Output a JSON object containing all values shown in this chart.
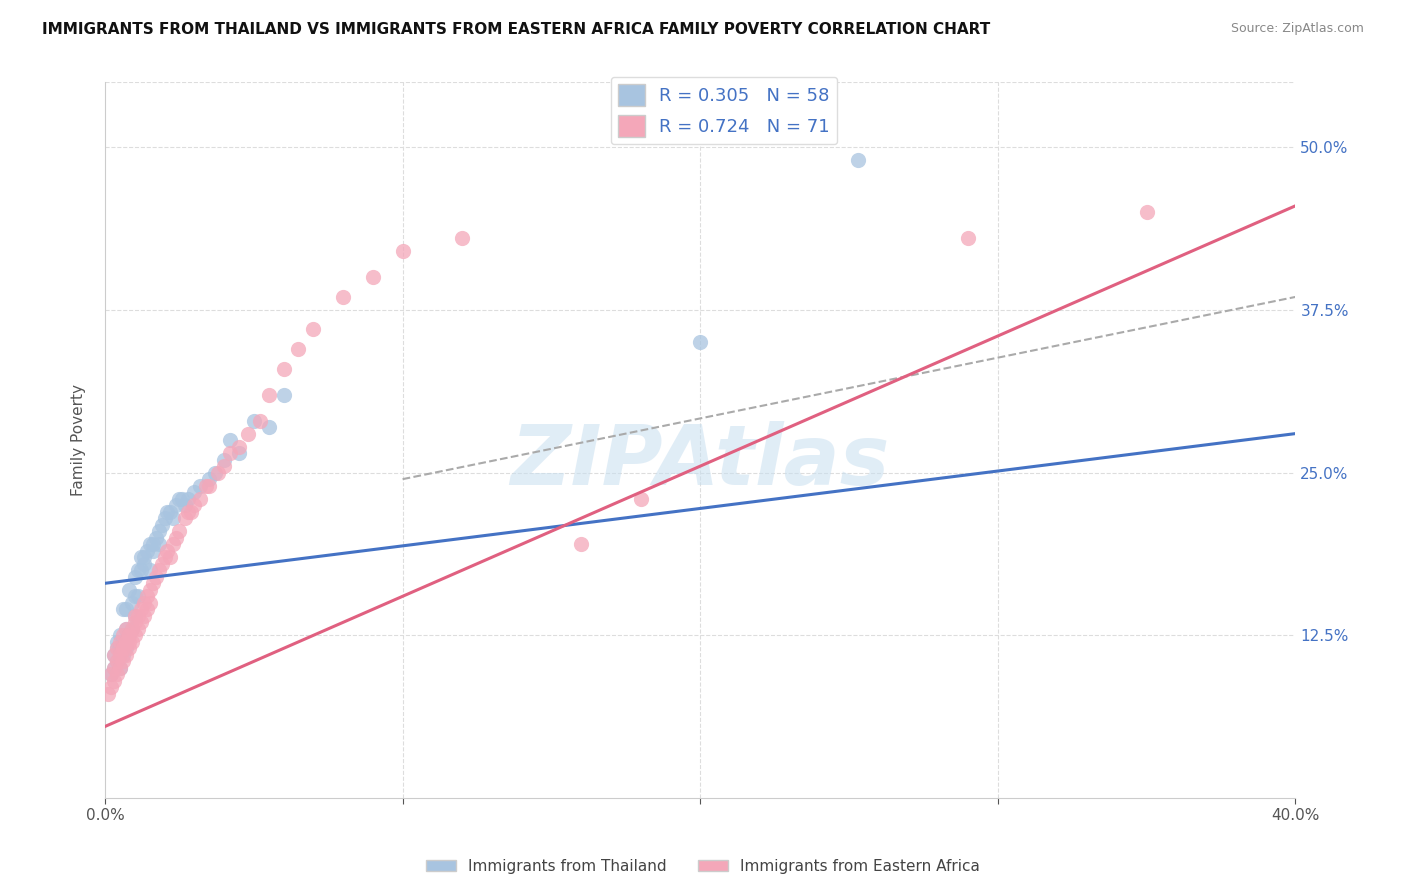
{
  "title": "IMMIGRANTS FROM THAILAND VS IMMIGRANTS FROM EASTERN AFRICA FAMILY POVERTY CORRELATION CHART",
  "source": "Source: ZipAtlas.com",
  "ylabel": "Family Poverty",
  "xlim": [
    0.0,
    0.4
  ],
  "ylim": [
    0.0,
    0.55
  ],
  "R_thailand": 0.305,
  "N_thailand": 58,
  "R_eafrica": 0.724,
  "N_eafrica": 71,
  "color_thailand": "#a8c4e0",
  "color_eafrica": "#f4a7b9",
  "line_color_thailand": "#4472c4",
  "line_color_eafrica": "#e06080",
  "line_color_dashed": "#aaaaaa",
  "legend_label_thailand": "Immigrants from Thailand",
  "legend_label_eafrica": "Immigrants from Eastern Africa",
  "watermark": "ZIPAtlas",
  "thailand_x": [
    0.002,
    0.003,
    0.003,
    0.004,
    0.004,
    0.004,
    0.005,
    0.005,
    0.005,
    0.006,
    0.006,
    0.006,
    0.007,
    0.007,
    0.007,
    0.008,
    0.008,
    0.009,
    0.009,
    0.01,
    0.01,
    0.01,
    0.011,
    0.011,
    0.012,
    0.012,
    0.013,
    0.013,
    0.014,
    0.015,
    0.015,
    0.016,
    0.016,
    0.017,
    0.018,
    0.018,
    0.019,
    0.02,
    0.021,
    0.022,
    0.023,
    0.024,
    0.025,
    0.026,
    0.027,
    0.028,
    0.03,
    0.032,
    0.035,
    0.037,
    0.04,
    0.042,
    0.045,
    0.05,
    0.055,
    0.06,
    0.2,
    0.253
  ],
  "thailand_y": [
    0.095,
    0.1,
    0.11,
    0.105,
    0.115,
    0.12,
    0.1,
    0.115,
    0.125,
    0.11,
    0.12,
    0.145,
    0.115,
    0.13,
    0.145,
    0.125,
    0.16,
    0.13,
    0.15,
    0.14,
    0.155,
    0.17,
    0.155,
    0.175,
    0.185,
    0.175,
    0.18,
    0.185,
    0.19,
    0.175,
    0.195,
    0.19,
    0.195,
    0.2,
    0.195,
    0.205,
    0.21,
    0.215,
    0.22,
    0.22,
    0.215,
    0.225,
    0.23,
    0.23,
    0.225,
    0.23,
    0.235,
    0.24,
    0.245,
    0.25,
    0.26,
    0.275,
    0.265,
    0.29,
    0.285,
    0.31,
    0.35,
    0.49
  ],
  "eafrica_x": [
    0.001,
    0.002,
    0.002,
    0.003,
    0.003,
    0.003,
    0.004,
    0.004,
    0.004,
    0.005,
    0.005,
    0.005,
    0.006,
    0.006,
    0.006,
    0.007,
    0.007,
    0.007,
    0.008,
    0.008,
    0.008,
    0.009,
    0.009,
    0.01,
    0.01,
    0.01,
    0.011,
    0.011,
    0.012,
    0.012,
    0.013,
    0.013,
    0.014,
    0.014,
    0.015,
    0.015,
    0.016,
    0.017,
    0.018,
    0.019,
    0.02,
    0.021,
    0.022,
    0.023,
    0.024,
    0.025,
    0.027,
    0.028,
    0.029,
    0.03,
    0.032,
    0.034,
    0.035,
    0.038,
    0.04,
    0.042,
    0.045,
    0.048,
    0.052,
    0.055,
    0.06,
    0.065,
    0.07,
    0.08,
    0.09,
    0.1,
    0.12,
    0.16,
    0.18,
    0.29,
    0.35
  ],
  "eafrica_y": [
    0.08,
    0.085,
    0.095,
    0.09,
    0.1,
    0.11,
    0.095,
    0.105,
    0.115,
    0.1,
    0.11,
    0.12,
    0.105,
    0.115,
    0.125,
    0.11,
    0.12,
    0.13,
    0.115,
    0.12,
    0.125,
    0.12,
    0.13,
    0.125,
    0.135,
    0.14,
    0.13,
    0.14,
    0.135,
    0.145,
    0.14,
    0.15,
    0.145,
    0.155,
    0.15,
    0.16,
    0.165,
    0.17,
    0.175,
    0.18,
    0.185,
    0.19,
    0.185,
    0.195,
    0.2,
    0.205,
    0.215,
    0.22,
    0.22,
    0.225,
    0.23,
    0.24,
    0.24,
    0.25,
    0.255,
    0.265,
    0.27,
    0.28,
    0.29,
    0.31,
    0.33,
    0.345,
    0.36,
    0.385,
    0.4,
    0.42,
    0.43,
    0.195,
    0.23,
    0.43,
    0.45
  ],
  "thailand_line_x": [
    0.0,
    0.4
  ],
  "thailand_line_y": [
    0.165,
    0.28
  ],
  "eafrica_line_x": [
    0.0,
    0.4
  ],
  "eafrica_line_y": [
    0.055,
    0.455
  ],
  "dashed_line_x": [
    0.1,
    0.4
  ],
  "dashed_line_y": [
    0.245,
    0.385
  ]
}
